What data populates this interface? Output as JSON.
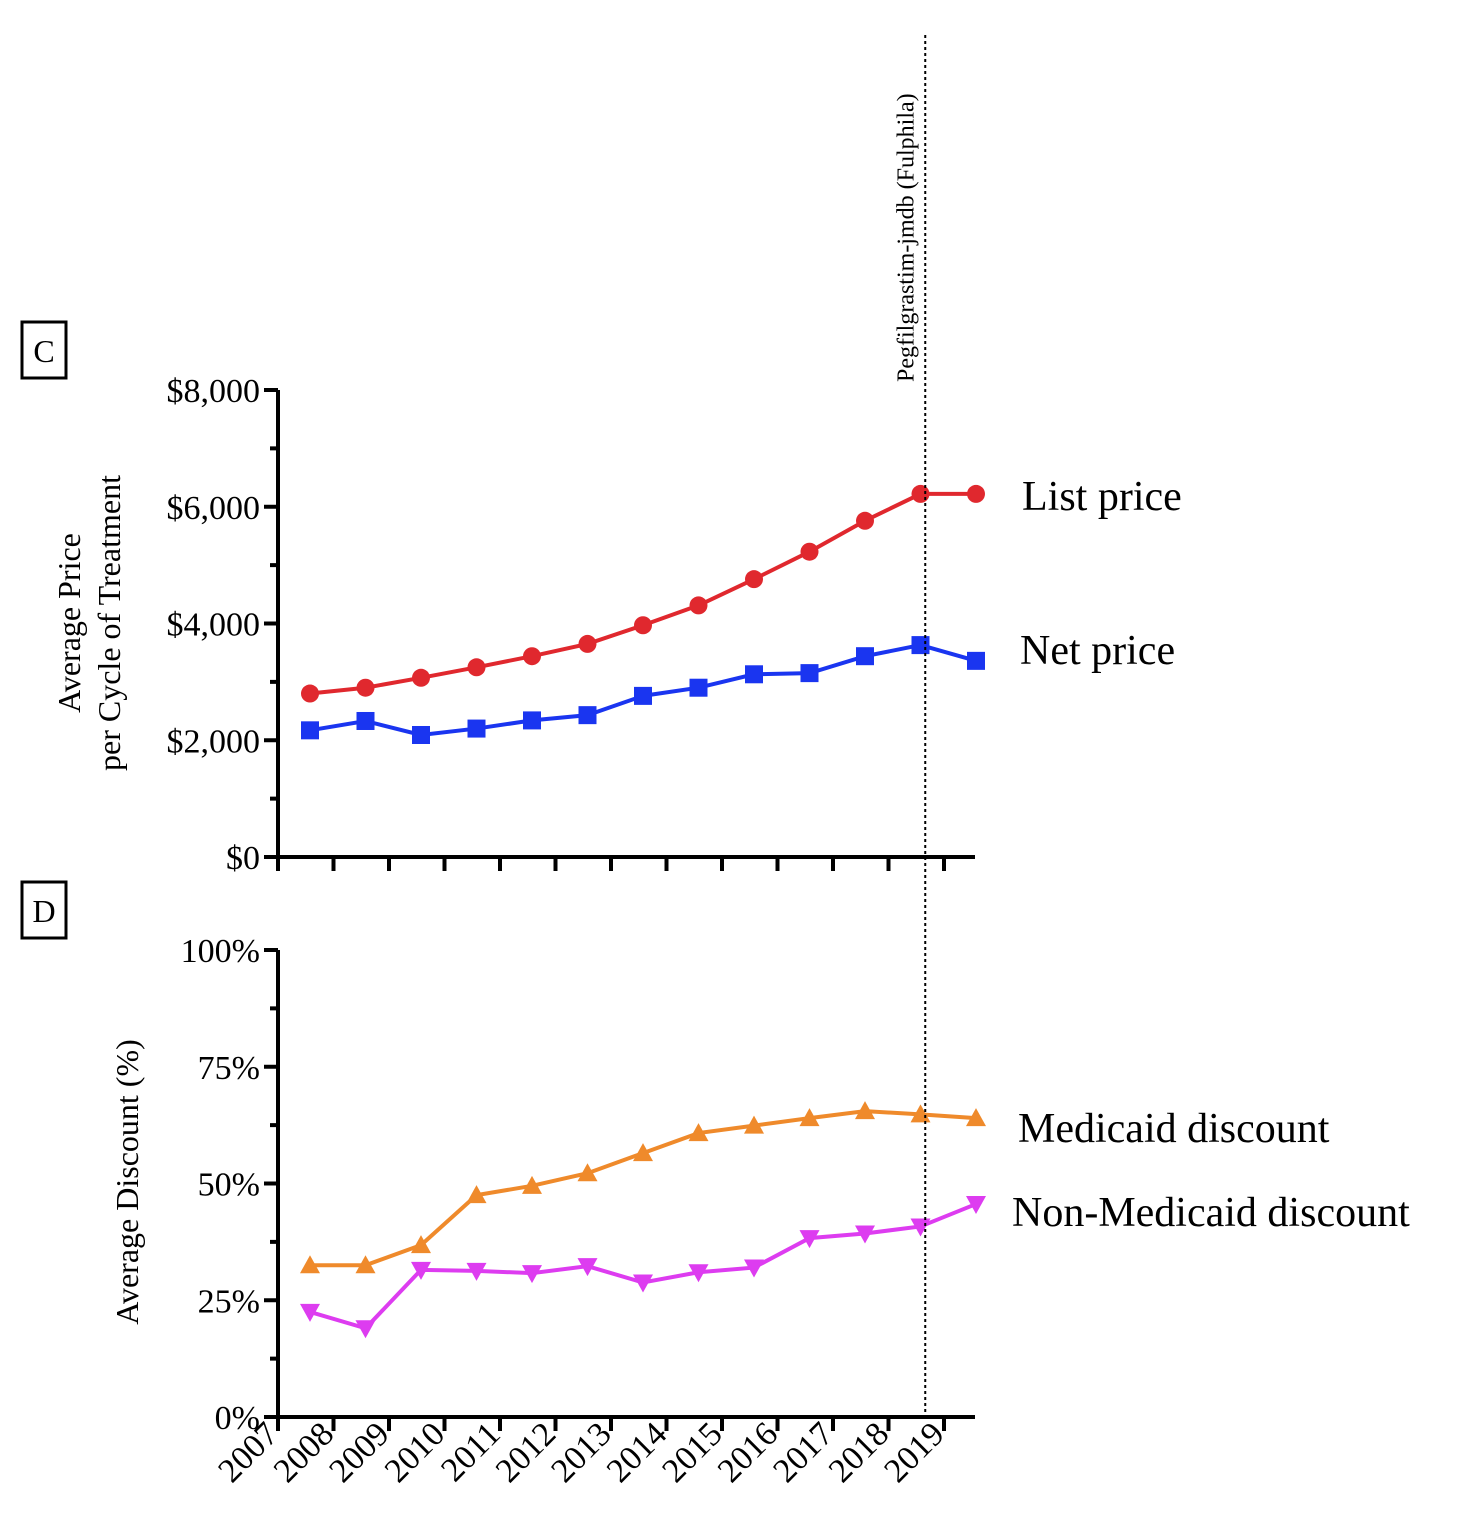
{
  "chart_data": [
    {
      "panel": "C",
      "type": "line",
      "ylabel": [
        "Average Price",
        "per Cycle of Treatment"
      ],
      "ylim": [
        0,
        8000
      ],
      "yticks": [
        "$0",
        "$2,000",
        "$4,000",
        "$6,000",
        "$8,000"
      ],
      "categories": [
        "2007",
        "2008",
        "2009",
        "2010",
        "2011",
        "2012",
        "2013",
        "2014",
        "2015",
        "2016",
        "2017",
        "2018",
        "2019"
      ],
      "series": [
        {
          "name": "List price",
          "color": "#e0282e",
          "marker": "circle",
          "values": [
            2800,
            2900,
            3070,
            3250,
            3440,
            3650,
            3970,
            4310,
            4760,
            5230,
            5760,
            6220,
            6220
          ]
        },
        {
          "name": "Net price",
          "color": "#1a35f0",
          "marker": "square",
          "values": [
            2170,
            2330,
            2090,
            2200,
            2340,
            2430,
            2760,
            2900,
            3130,
            3150,
            3440,
            3630,
            3360
          ]
        }
      ],
      "annotation": {
        "text": "Pegfilgrastim-jmdb (Fulphila)",
        "at_index": 11.5
      }
    },
    {
      "panel": "D",
      "type": "line",
      "ylabel": "Average Discount (%)",
      "ylim": [
        0,
        100
      ],
      "yticks": [
        "0%",
        "25%",
        "50%",
        "75%",
        "100%"
      ],
      "categories": [
        "2007",
        "2008",
        "2009",
        "2010",
        "2011",
        "2012",
        "2013",
        "2014",
        "2015",
        "2016",
        "2017",
        "2018",
        "2019"
      ],
      "series": [
        {
          "name": "Medicaid discount",
          "color": "#ef8a2b",
          "marker": "triangle-up",
          "values": [
            32.5,
            32.5,
            36.8,
            47.5,
            49.5,
            52.2,
            56.5,
            60.8,
            62.4,
            64.0,
            65.5,
            64.8,
            64.0
          ]
        },
        {
          "name": "Non-Medicaid discount",
          "color": "#dd3cf0",
          "marker": "triangle-down",
          "values": [
            22.5,
            19.0,
            31.5,
            31.3,
            30.8,
            32.3,
            28.8,
            31.0,
            32.0,
            38.3,
            39.3,
            40.8,
            45.6
          ]
        }
      ]
    }
  ]
}
